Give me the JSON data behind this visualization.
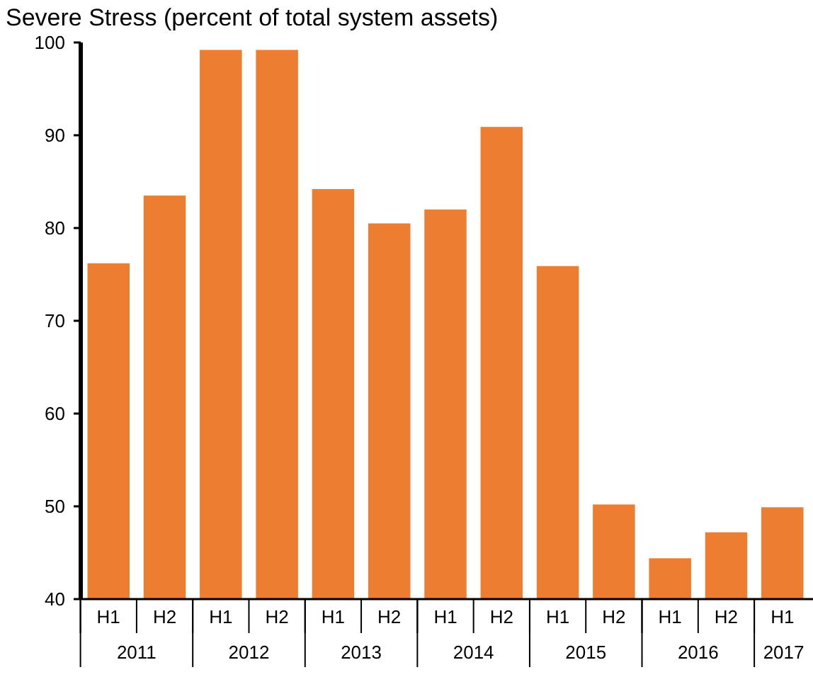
{
  "chart_data": {
    "type": "bar",
    "title": "Severe Stress (percent of total system assets)",
    "categories": [
      "H1",
      "H2",
      "H1",
      "H2",
      "H1",
      "H2",
      "H1",
      "H2",
      "H1",
      "H2",
      "H1",
      "H2",
      "H1"
    ],
    "values": [
      76.2,
      83.5,
      99.2,
      99.2,
      84.2,
      80.5,
      82.0,
      90.9,
      75.9,
      50.2,
      44.4,
      47.2,
      49.9
    ],
    "color": "#ed7d31",
    "ylim": [
      40,
      100
    ],
    "yticks": [
      40,
      50,
      60,
      70,
      80,
      90,
      100
    ],
    "annotations": [
      "2011",
      "2012",
      "2013",
      "2014",
      "2015",
      "2016",
      "2017"
    ],
    "grid": false
  }
}
